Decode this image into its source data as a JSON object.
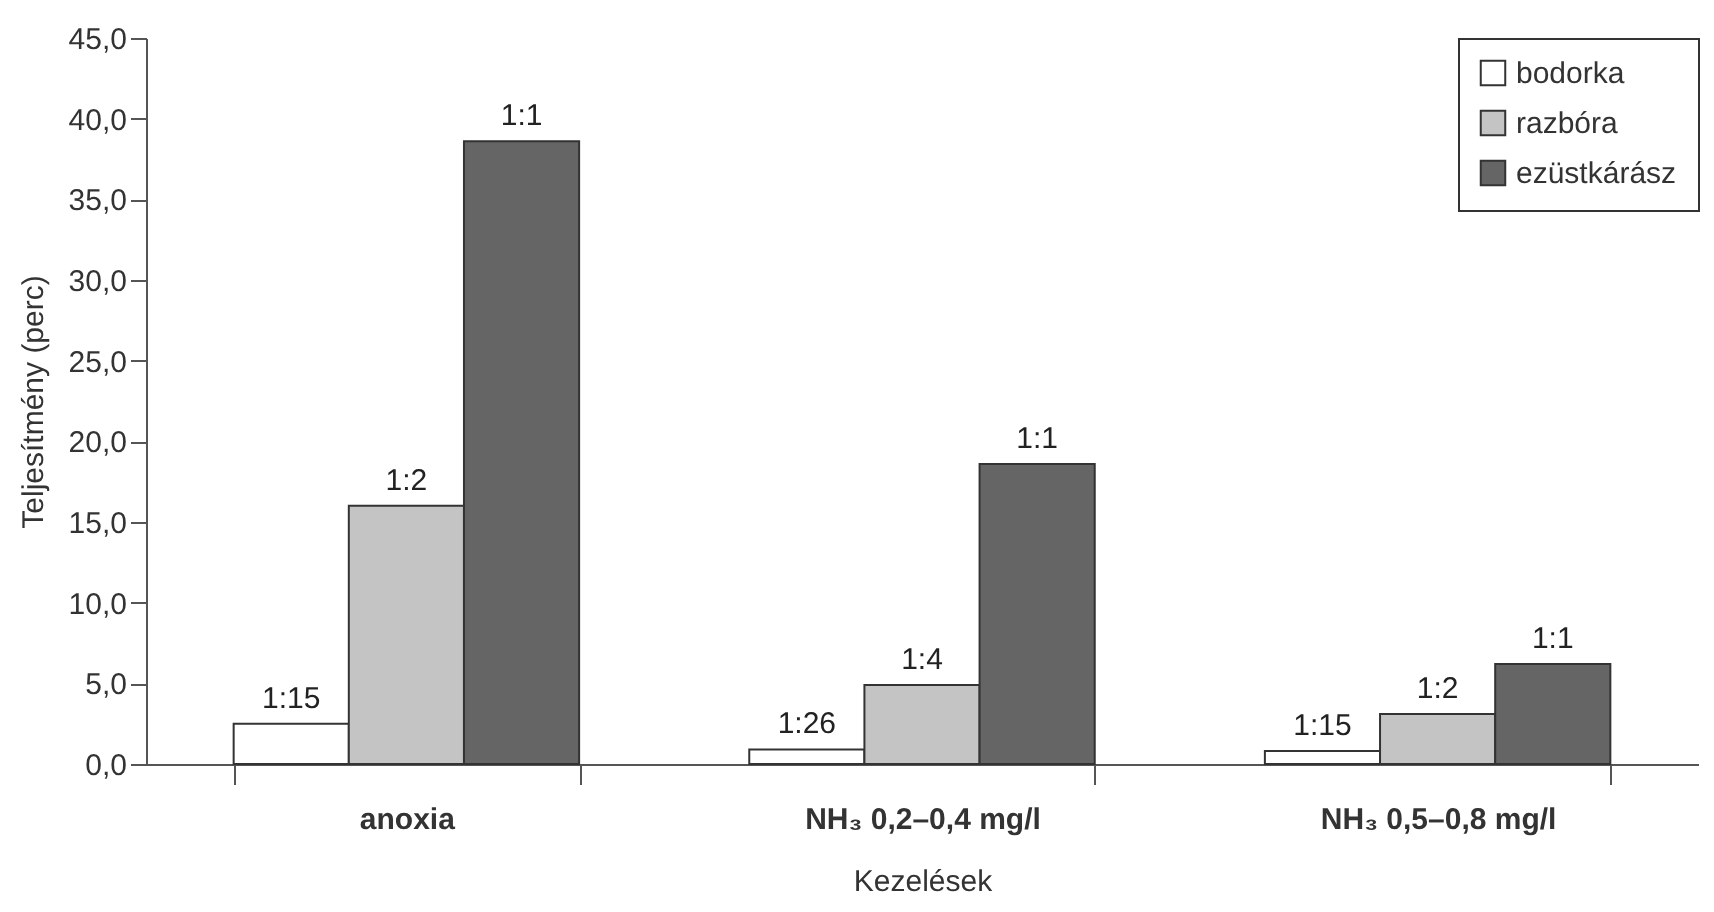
{
  "chart_data": {
    "type": "bar",
    "xlabel": "Kezelések",
    "ylabel": "Teljesítmény (perc)",
    "categories": [
      "anoxia",
      "NH₃ 0,2–0,4 mg/l",
      "NH₃ 0,5–0,8 mg/l"
    ],
    "series": [
      {
        "name": "bodorka",
        "color": "#ffffff",
        "values": [
          2.5,
          0.9,
          0.8
        ]
      },
      {
        "name": "razbóra",
        "color": "#c4c4c4",
        "values": [
          16.0,
          4.9,
          3.1
        ]
      },
      {
        "name": "ezüstkárász",
        "color": "#656565",
        "values": [
          38.6,
          18.6,
          6.2
        ]
      }
    ],
    "annotations": [
      "1:15",
      "1:2",
      "1:1",
      "1:26",
      "1:4",
      "1:1",
      "1:15",
      "1:2",
      "1:1"
    ],
    "ylim": [
      0,
      45
    ],
    "yticks": [
      {
        "value": 0,
        "label": "0,0"
      },
      {
        "value": 5,
        "label": "5,0"
      },
      {
        "value": 10,
        "label": "10,0"
      },
      {
        "value": 15,
        "label": "15,0"
      },
      {
        "value": 20,
        "label": "20,0"
      },
      {
        "value": 25,
        "label": "25,0"
      },
      {
        "value": 30,
        "label": "30,0"
      },
      {
        "value": 35,
        "label": "35,0"
      },
      {
        "value": 40,
        "label": "40,0"
      },
      {
        "value": 45,
        "label": "45,0"
      }
    ],
    "legend": "top right",
    "grid": false
  }
}
